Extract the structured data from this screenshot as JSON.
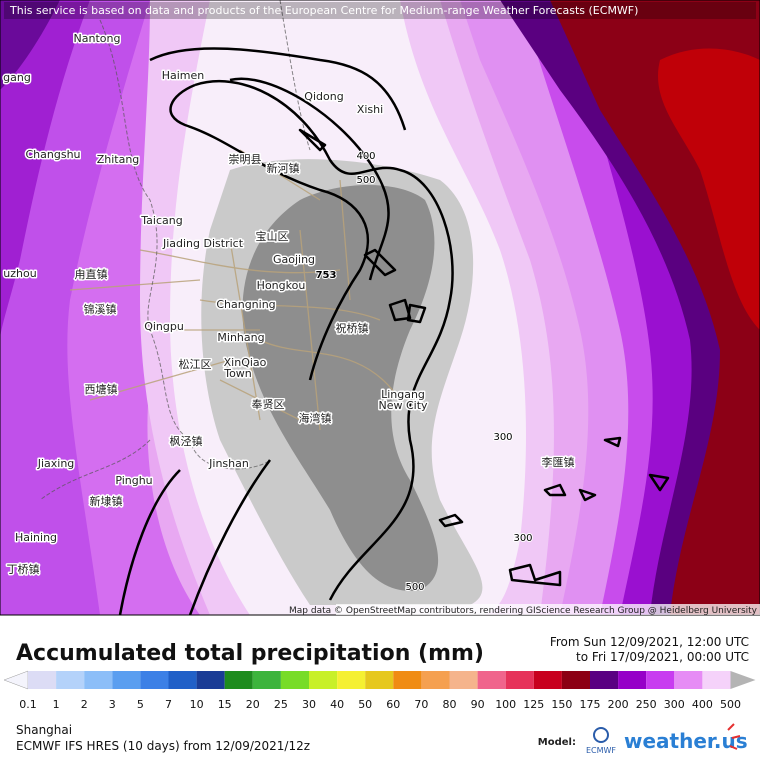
{
  "banner": "This service is based on data and products of the European Centre for Medium-range Weather Forecasts (ECMWF)",
  "places": [
    "Nantong",
    "Haimen",
    "Qidong",
    "Xishi",
    "Changshu",
    "Zhitang",
    "崇明县",
    "新河镇",
    "Taicang",
    "Jiading District",
    "宝山区",
    "Gaojing",
    "Hongkou",
    "Changning",
    "Qingpu",
    "Minhang",
    "祝桥镇",
    "松江区",
    "XinQiao",
    "Town",
    "Lingang",
    "New City",
    "奉贤区",
    "海湾镇",
    "枫泾镇",
    "Jinshan",
    "Jiaxing",
    "Pinghu",
    "新埭镇",
    "Haining",
    "丁桥镇",
    "李匯镇",
    "gang",
    "uzhou",
    "甪直镇",
    "锦溪镇",
    "西塘镇"
  ],
  "contour_labels": [
    "400",
    "500",
    "753",
    "300",
    "300",
    "500"
  ],
  "attribution": "Map data © OpenStreetMap contributors, rendering GIScience Research Group @ Heidelberg University",
  "title": "Accumulated total precipitation (mm)",
  "period": {
    "from": "From Sun 12/09/2021, 12:00 UTC",
    "to": "to Fri 17/09/2021, 00:00 UTC"
  },
  "legend": {
    "ticks": [
      "0.1",
      "1",
      "2",
      "3",
      "5",
      "7",
      "10",
      "15",
      "20",
      "25",
      "30",
      "40",
      "50",
      "60",
      "70",
      "80",
      "90",
      "100",
      "125",
      "150",
      "175",
      "200",
      "250",
      "300",
      "400",
      "500"
    ],
    "under_color": "#f4f4fc",
    "colors": [
      "#dcdcf5",
      "#b4d2fa",
      "#8cbef8",
      "#5a9ef0",
      "#3c80e6",
      "#2060c8",
      "#1a3c96",
      "#1e8c1e",
      "#3cb43c",
      "#78dc28",
      "#c8f028",
      "#f5f032",
      "#e6c81e",
      "#f08c14",
      "#f5a050",
      "#f5b48c",
      "#f0648c",
      "#e6325a",
      "#c8001e",
      "#8c0014",
      "#5a0082",
      "#9600c8",
      "#c83cf0",
      "#e68cf5",
      "#f5d2fa"
    ],
    "over_color": "#b4b4b4"
  },
  "footer": {
    "location": "Shanghai",
    "model_run": "ECMWF IFS HRES (10 days) from 12/09/2021/12z",
    "model_label": "Model:",
    "model_name": "ECMWF",
    "brand": "weather.us"
  }
}
